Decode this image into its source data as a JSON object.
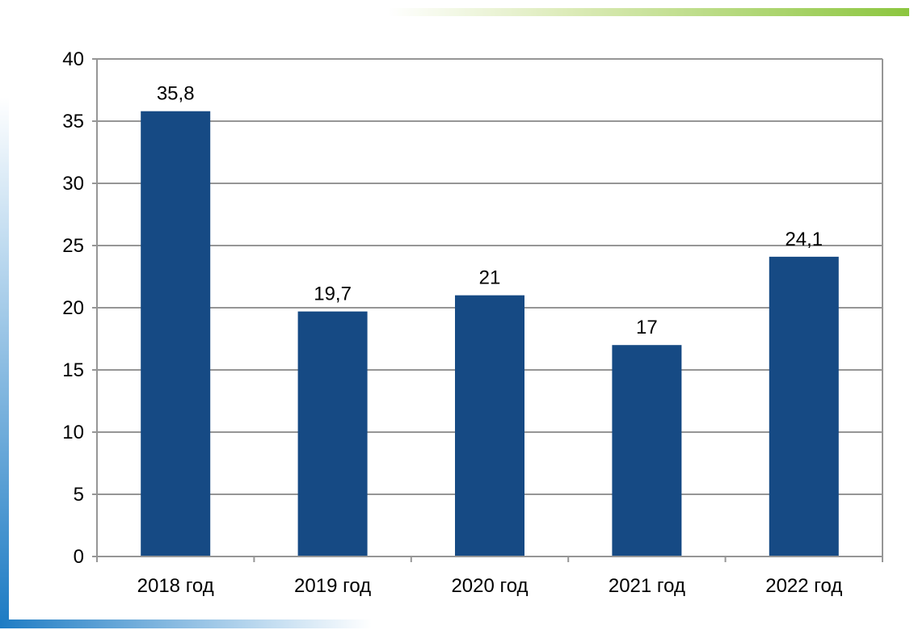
{
  "chart_data": {
    "type": "bar",
    "categories": [
      "2018 год",
      "2019 год",
      "2020 год",
      "2021 год",
      "2022 год"
    ],
    "values": [
      35.8,
      19.7,
      21,
      17,
      24.1
    ],
    "data_labels": [
      "35,8",
      "19,7",
      "21",
      "17",
      "24,1"
    ],
    "title": "",
    "xlabel": "",
    "ylabel": "",
    "ylim": [
      0,
      40
    ],
    "y_ticks": [
      0,
      5,
      10,
      15,
      20,
      25,
      30,
      35,
      40
    ],
    "grid": true,
    "legend": "none",
    "bar_color": "#164A84",
    "grid_color": "#969696"
  },
  "decorations": {
    "accent_green": "#8CC63F",
    "accent_blue": "#1E7CC4"
  }
}
